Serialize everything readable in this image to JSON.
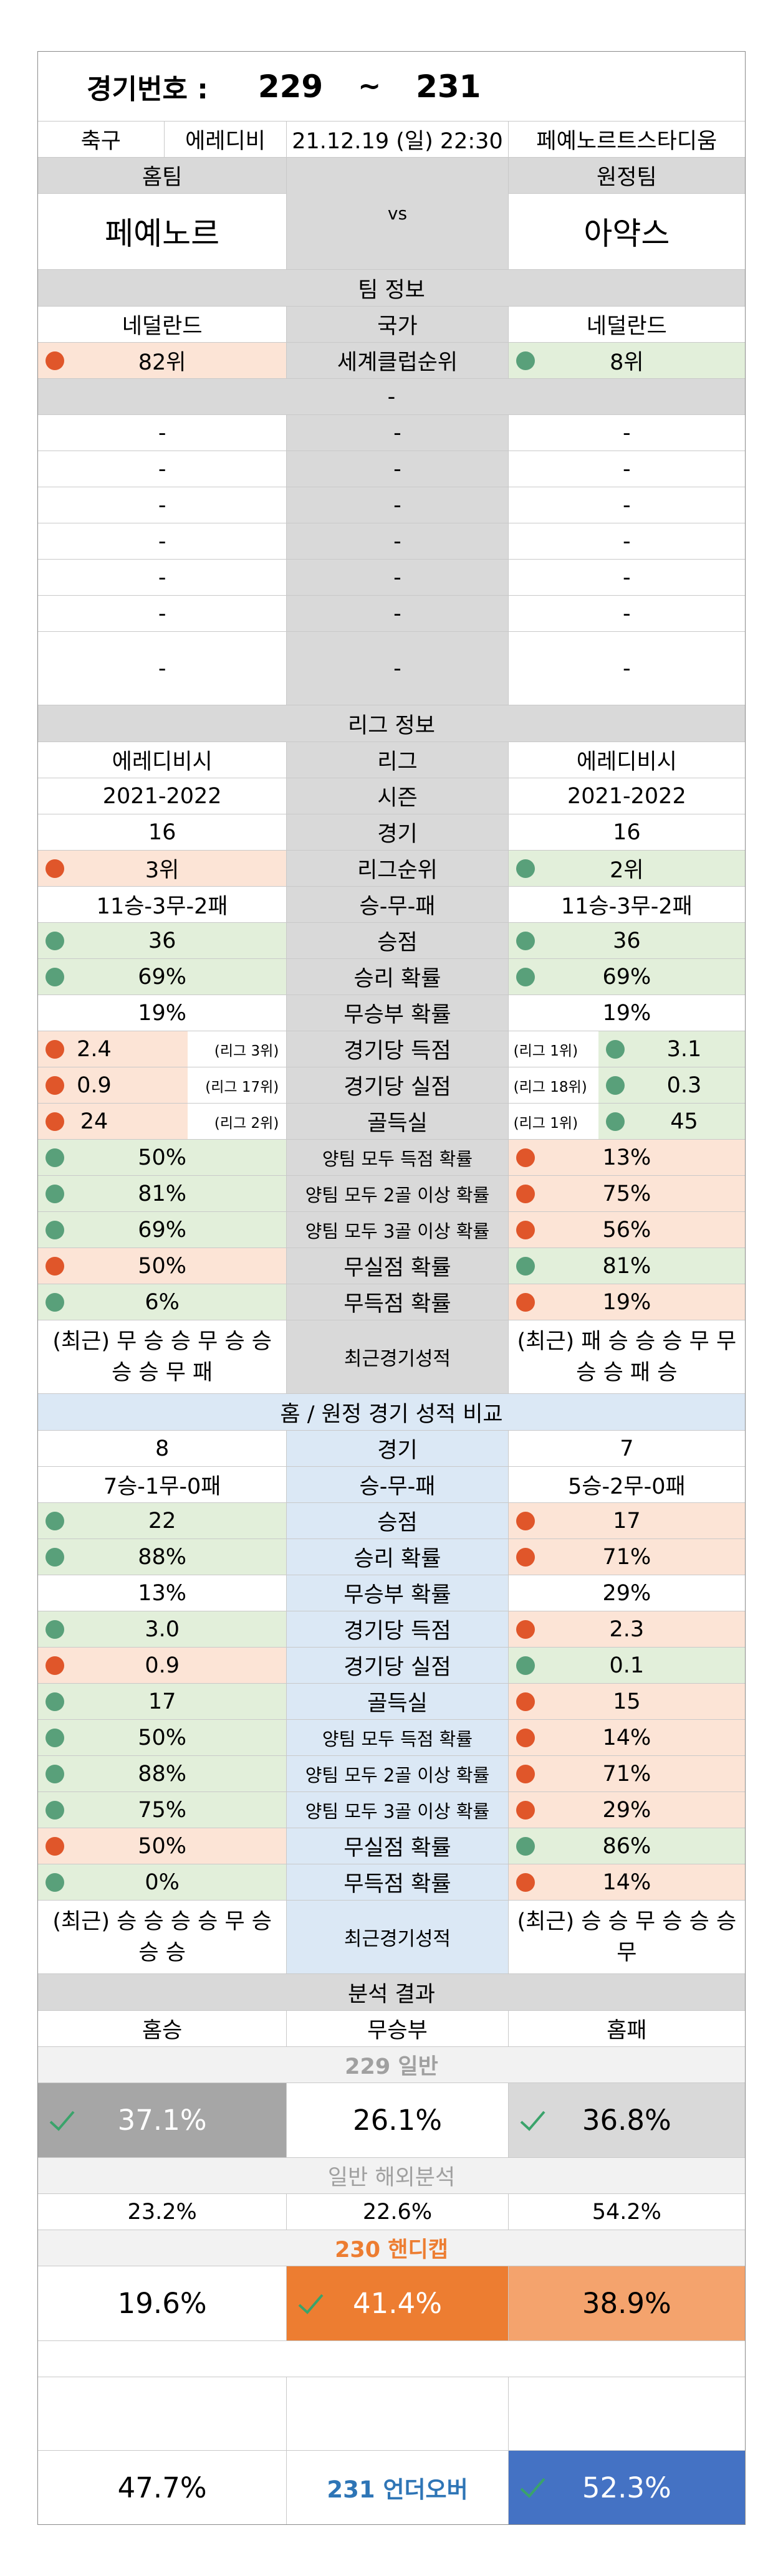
{
  "header": {
    "label": "경기번호 :",
    "range_start": "229",
    "tilde": "~",
    "range_end": "231"
  },
  "match": {
    "sport": "축구",
    "league": "에레디비",
    "datetime": "21.12.19 (일) 22:30",
    "venue": "페예노르트스타디움",
    "home_label": "홈팀",
    "away_label": "원정팀",
    "home_team": "페예노르",
    "vs": "vs",
    "away_team": "아약스"
  },
  "team_info": {
    "title": "팀 정보",
    "home_country": "네덜란드",
    "country_label": "국가",
    "away_country": "네덜란드",
    "home_world_rank": "82위",
    "world_rank_label": "세계클럽순위",
    "away_world_rank": "8위",
    "dash": "-",
    "empty_rows": [
      "-",
      "-",
      "-",
      "-",
      "-",
      "-",
      "-"
    ]
  },
  "league_info": {
    "title": "리그 정보",
    "rows": [
      {
        "home": "에레디비시",
        "label": "리그",
        "away": "에레디비시"
      },
      {
        "home": "2021-2022",
        "label": "시즌",
        "away": "2021-2022"
      },
      {
        "home": "16",
        "label": "경기",
        "away": "16"
      },
      {
        "home": "3위",
        "label": "리그순위",
        "away": "2위",
        "home_color": "red",
        "away_color": "green"
      },
      {
        "home": "11승-3무-2패",
        "label": "승-무-패",
        "away": "11승-3무-2패"
      },
      {
        "home": "36",
        "label": "승점",
        "away": "36",
        "home_color": "green",
        "away_color": "green"
      },
      {
        "home": "69%",
        "label": "승리 확률",
        "away": "69%",
        "home_color": "green",
        "away_color": "green"
      },
      {
        "home": "19%",
        "label": "무승부 확률",
        "away": "19%"
      }
    ],
    "ranked_rows": [
      {
        "home": "2.4",
        "home_rank": "(리그 3위)",
        "label": "경기당 득점",
        "away_rank": "(리그 1위)",
        "away": "3.1",
        "home_color": "red",
        "away_color": "green"
      },
      {
        "home": "0.9",
        "home_rank": "(리그 17위)",
        "label": "경기당 실점",
        "away_rank": "(리그 18위)",
        "away": "0.3",
        "home_color": "red",
        "away_color": "green"
      },
      {
        "home": "24",
        "home_rank": "(리그 2위)",
        "label": "골득실",
        "away_rank": "(리그 1위)",
        "away": "45",
        "home_color": "red",
        "away_color": "green"
      }
    ],
    "prob_rows": [
      {
        "home": "50%",
        "label": "양팀 모두 득점 확률",
        "away": "13%",
        "home_color": "green",
        "away_color": "red"
      },
      {
        "home": "81%",
        "label": "양팀 모두 2골 이상 확률",
        "away": "75%",
        "home_color": "green",
        "away_color": "red"
      },
      {
        "home": "69%",
        "label": "양팀 모두 3골 이상 확률",
        "away": "56%",
        "home_color": "green",
        "away_color": "red"
      },
      {
        "home": "50%",
        "label": "무실점 확률",
        "away": "81%",
        "home_color": "red",
        "away_color": "green"
      },
      {
        "home": "6%",
        "label": "무득점 확률",
        "away": "19%",
        "home_color": "green",
        "away_color": "red"
      }
    ],
    "recent": {
      "home": "(최근) 무 승 승 무 승 승 승 승 무 패",
      "label": "최근경기성적",
      "away": "(최근) 패 승 승 승 무 무 승 승 패 승"
    }
  },
  "home_away": {
    "title": "홈 / 원정 경기 성적 비교",
    "rows": [
      {
        "home": "8",
        "label": "경기",
        "away": "7"
      },
      {
        "home": "7승-1무-0패",
        "label": "승-무-패",
        "away": "5승-2무-0패"
      },
      {
        "home": "22",
        "label": "승점",
        "away": "17",
        "home_color": "green",
        "away_color": "red"
      },
      {
        "home": "88%",
        "label": "승리 확률",
        "away": "71%",
        "home_color": "green",
        "away_color": "red"
      },
      {
        "home": "13%",
        "label": "무승부 확률",
        "away": "29%"
      },
      {
        "home": "3.0",
        "label": "경기당 득점",
        "away": "2.3",
        "home_color": "green",
        "away_color": "red"
      },
      {
        "home": "0.9",
        "label": "경기당 실점",
        "away": "0.1",
        "home_color": "red",
        "away_color": "green"
      },
      {
        "home": "17",
        "label": "골득실",
        "away": "15",
        "home_color": "green",
        "away_color": "red"
      },
      {
        "home": "50%",
        "label": "양팀 모두 득점 확률",
        "away": "14%",
        "home_color": "green",
        "away_color": "red"
      },
      {
        "home": "88%",
        "label": "양팀 모두 2골 이상 확률",
        "away": "71%",
        "home_color": "green",
        "away_color": "red"
      },
      {
        "home": "75%",
        "label": "양팀 모두 3골 이상 확률",
        "away": "29%",
        "home_color": "green",
        "away_color": "red"
      },
      {
        "home": "50%",
        "label": "무실점 확률",
        "away": "86%",
        "home_color": "red",
        "away_color": "green"
      },
      {
        "home": "0%",
        "label": "무득점 확률",
        "away": "14%",
        "home_color": "green",
        "away_color": "red"
      }
    ],
    "recent": {
      "home": "(최근) 승 승 승 승 무 승 승 승",
      "label": "최근경기성적",
      "away": "(최근) 승 승 무 승 승 승 무"
    }
  },
  "analysis": {
    "title": "분석 결과",
    "col_home": "홈승",
    "col_draw": "무승부",
    "col_away": "홈패",
    "game229": {
      "label": "229 일반",
      "home": "37.1%",
      "draw": "26.1%",
      "away": "36.8%"
    },
    "overseas": {
      "label": "일반 해외분석",
      "home": "23.2%",
      "draw": "22.6%",
      "away": "54.2%"
    },
    "game230": {
      "label": "230 핸디캡",
      "home": "19.6%",
      "draw": "41.4%",
      "away": "38.9%"
    },
    "game231": {
      "label": "231 언더오버",
      "under": "47.7%",
      "over": "52.3%"
    }
  },
  "colors": {
    "red_fill": "#fce4d6",
    "green_fill": "#e2efda",
    "red_dot": "#e0562a",
    "green_dot": "#59a07a",
    "gray": "#d9d9d9",
    "blue_header": "#dbe8f5",
    "dark_gray": "#a6a6a6",
    "orange": "#ed7d31",
    "light_orange": "#f4a36d",
    "blue_pick": "#4472c4",
    "label_gray": "#a0a0a0",
    "orange_text": "#ed7d31",
    "blue_text": "#2e75b6"
  }
}
